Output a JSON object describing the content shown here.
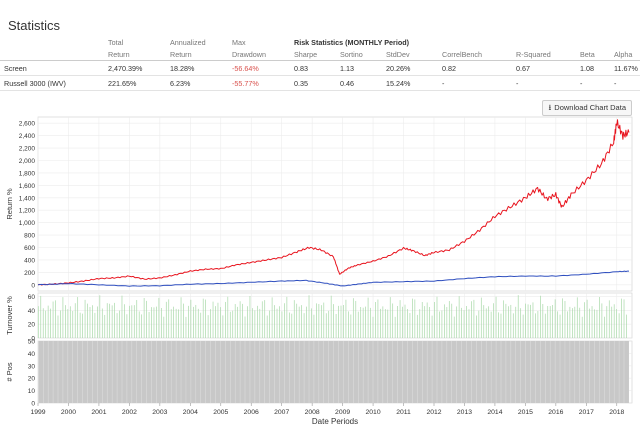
{
  "page": {
    "title": "Statistics"
  },
  "stats": {
    "headers_top": [
      "",
      "Total",
      "Annualized",
      "Max",
      "Risk Statistics (MONTHLY Period)",
      "",
      "",
      "",
      "",
      "",
      ""
    ],
    "headers_bottom": [
      "",
      "Return",
      "Return",
      "Drawdown",
      "Sharpe",
      "Sortino",
      "StdDev",
      "CorrelBench",
      "R-Squared",
      "Beta",
      "Alpha"
    ],
    "rows": [
      [
        "Screen",
        "2,470.39%",
        "18.28%",
        "-56.64%",
        "0.83",
        "1.13",
        "20.26%",
        "0.82",
        "0.67",
        "1.08",
        "11.67%"
      ],
      [
        "Russell 3000 (IWV)",
        "221.65%",
        "6.23%",
        "-55.77%",
        "0.35",
        "0.46",
        "15.24%",
        "-",
        "-",
        "-",
        "-"
      ]
    ]
  },
  "toolbar": {
    "download_label": "Download Chart Data",
    "download_icon": "download-icon"
  },
  "colors": {
    "screen": "#e8141e",
    "benchmark": "#2f4fbf",
    "turnover": "#a8d8a8",
    "positions": "#c8c8c8"
  },
  "chart_data": [
    {
      "type": "line",
      "ylabel": "Return %",
      "ylim": [
        -100,
        2700
      ],
      "yticks": [
        0,
        200,
        400,
        600,
        800,
        1000,
        1200,
        1400,
        1600,
        1800,
        2000,
        2200,
        2400,
        2600
      ],
      "ytick_labels": [
        "0",
        "200",
        "400",
        "600",
        "800",
        "1,000",
        "1,200",
        "1,400",
        "1,600",
        "1,800",
        "2,000",
        "2,200",
        "2,400",
        "2,600"
      ],
      "xlim": [
        1999.0,
        2018.5
      ],
      "grid": true,
      "series": [
        {
          "name": "Screen",
          "x": [
            1999.0,
            1999.5,
            2000.0,
            2000.5,
            2001.0,
            2001.5,
            2002.0,
            2002.5,
            2003.0,
            2003.5,
            2004.0,
            2004.5,
            2005.0,
            2005.5,
            2006.0,
            2006.5,
            2007.0,
            2007.5,
            2007.9,
            2008.3,
            2008.7,
            2008.9,
            2009.2,
            2009.5,
            2010.0,
            2010.5,
            2011.0,
            2011.3,
            2011.7,
            2012.0,
            2012.5,
            2013.0,
            2013.5,
            2014.0,
            2014.5,
            2015.0,
            2015.4,
            2015.7,
            2016.0,
            2016.2,
            2016.5,
            2017.0,
            2017.5,
            2017.9,
            2018.0,
            2018.2,
            2018.4
          ],
          "y": [
            0,
            10,
            30,
            60,
            100,
            110,
            140,
            90,
            110,
            160,
            220,
            250,
            260,
            320,
            360,
            400,
            440,
            530,
            600,
            560,
            450,
            170,
            270,
            320,
            380,
            460,
            590,
            550,
            470,
            520,
            560,
            700,
            880,
            1100,
            1250,
            1400,
            1550,
            1380,
            1450,
            1250,
            1450,
            1680,
            1950,
            2300,
            2620,
            2400,
            2450
          ]
        },
        {
          "name": "Russell 3000 (IWV)",
          "x": [
            1999.0,
            2000.0,
            2001.0,
            2002.0,
            2003.0,
            2004.0,
            2005.0,
            2006.0,
            2007.0,
            2007.8,
            2008.5,
            2009.0,
            2009.5,
            2010.0,
            2011.0,
            2012.0,
            2013.0,
            2014.0,
            2015.0,
            2016.0,
            2017.0,
            2018.0,
            2018.4
          ],
          "y": [
            0,
            20,
            0,
            -20,
            -15,
            10,
            20,
            40,
            60,
            70,
            20,
            -20,
            10,
            40,
            50,
            60,
            100,
            130,
            140,
            140,
            170,
            210,
            220
          ]
        }
      ]
    },
    {
      "type": "bar",
      "ylabel": "Turnover %",
      "ylim": [
        0,
        65
      ],
      "yticks": [
        0,
        20,
        40,
        60
      ],
      "ytick_labels": [
        "0",
        "20",
        "40",
        "60"
      ],
      "typical_range": [
        30,
        62
      ]
    },
    {
      "type": "area",
      "ylabel": "# Pos",
      "ylim": [
        0,
        50
      ],
      "yticks": [
        0,
        10,
        20,
        30,
        40,
        50
      ],
      "ytick_labels": [
        "0",
        "10",
        "20",
        "30",
        "40",
        "50"
      ],
      "value": 50
    }
  ],
  "x_axis": {
    "label": "Date Periods",
    "tick_labels": [
      "1999",
      "2000",
      "2001",
      "2002",
      "2003",
      "2004",
      "2005",
      "2006",
      "2007",
      "2008",
      "2009",
      "2010",
      "2011",
      "2012",
      "2013",
      "2014",
      "2015",
      "2016",
      "2017",
      "2018"
    ],
    "tick_values": [
      1999,
      2000,
      2001,
      2002,
      2003,
      2004,
      2005,
      2006,
      2007,
      2008,
      2009,
      2010,
      2011,
      2012,
      2013,
      2014,
      2015,
      2016,
      2017,
      2018
    ]
  }
}
